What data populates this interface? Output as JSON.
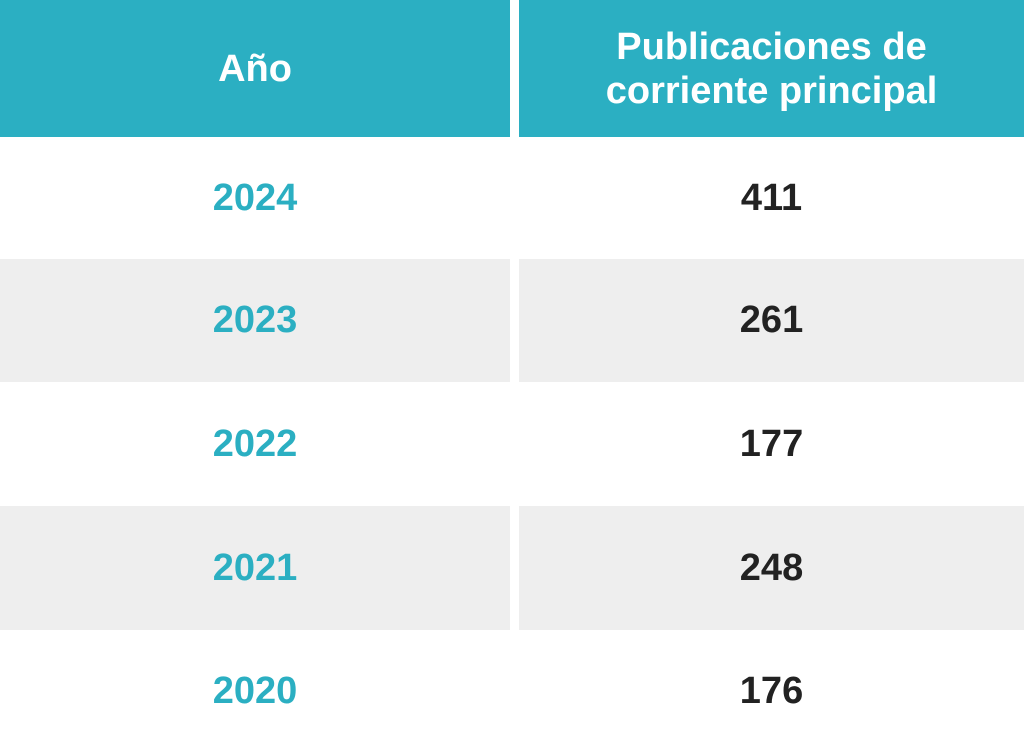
{
  "colors": {
    "header": "#2BAFC2",
    "year_text": "#2BAFC2",
    "stripe": "#EEEEEE",
    "value_text": "#222222"
  },
  "chart_data": {
    "type": "table",
    "headers": [
      "Año",
      "Publicaciones de corriente principal"
    ],
    "rows": [
      {
        "year": "2024",
        "value": "411"
      },
      {
        "year": "2023",
        "value": "261"
      },
      {
        "year": "2022",
        "value": "177"
      },
      {
        "year": "2021",
        "value": "248"
      },
      {
        "year": "2020",
        "value": "176"
      }
    ]
  }
}
